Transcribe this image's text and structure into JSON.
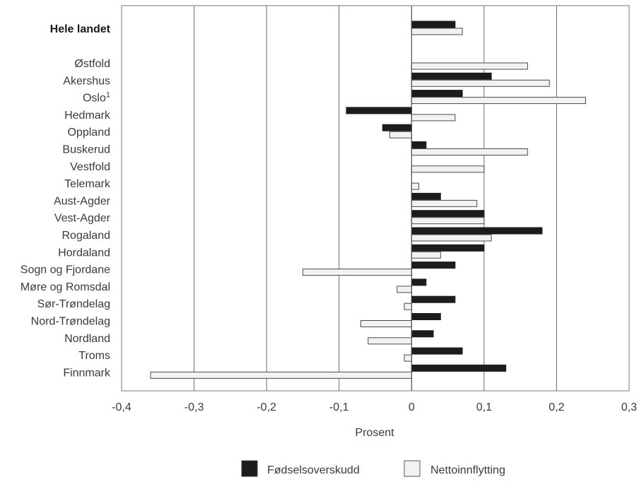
{
  "chart_data": {
    "type": "bar",
    "orientation": "horizontal",
    "categories": [
      "Hele landet",
      "Østfold",
      "Akershus",
      "Oslo",
      "Hedmark",
      "Oppland",
      "Buskerud",
      "Vestfold",
      "Telemark",
      "Aust-Agder",
      "Vest-Agder",
      "Rogaland",
      "Hordaland",
      "Sogn og Fjordane",
      "Møre og Romsdal",
      "Sør-Trøndelag",
      "Nord-Trøndelag",
      "Nordland",
      "Troms",
      "Finnmark"
    ],
    "category_superscripts": {
      "Oslo": "1"
    },
    "bold_categories": [
      "Hele landet"
    ],
    "series": [
      {
        "name": "Fødselsoverskudd",
        "color": "#1c1c1c",
        "values": [
          0.06,
          0.0,
          0.11,
          0.07,
          -0.09,
          -0.04,
          0.02,
          0.0,
          0.0,
          0.04,
          0.1,
          0.18,
          0.1,
          0.06,
          0.02,
          0.06,
          0.04,
          0.03,
          0.07,
          0.13
        ]
      },
      {
        "name": "Nettoinnflytting",
        "color": "#f2f2f2",
        "values": [
          0.07,
          0.16,
          0.19,
          0.24,
          0.06,
          -0.03,
          0.16,
          0.1,
          0.01,
          0.09,
          0.1,
          0.11,
          0.04,
          -0.15,
          -0.02,
          -0.01,
          -0.07,
          -0.06,
          -0.01,
          -0.36
        ]
      }
    ],
    "xlabel": "Prosent",
    "ylabel": "",
    "xlim": [
      -0.4,
      0.3
    ],
    "xticks": [
      -0.4,
      -0.3,
      -0.2,
      -0.1,
      0,
      0.1,
      0.2,
      0.3
    ],
    "xtick_labels": [
      "-0,4",
      "-0,3",
      "-0,2",
      "-0,1",
      "0",
      "0,1",
      "0,2",
      "0,3"
    ],
    "grid": "vertical",
    "legend": "bottom-center"
  }
}
